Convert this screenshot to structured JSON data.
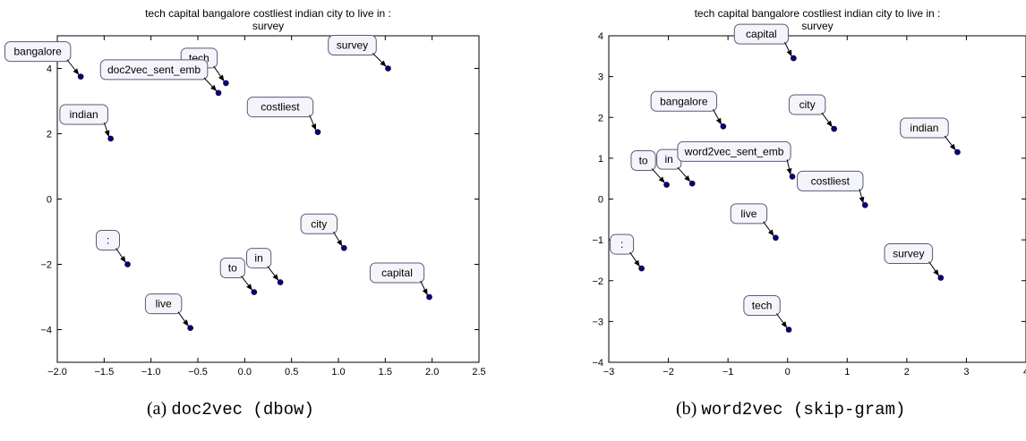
{
  "chart_data": [
    {
      "type": "scatter",
      "title_line1": "tech capital bangalore costliest indian city to live in :",
      "title_line2": "survey",
      "xlabel": "",
      "ylabel": "",
      "xlim": [
        -2.0,
        2.5
      ],
      "ylim": [
        -5,
        5
      ],
      "xticks": [
        -2.0,
        -1.5,
        -1.0,
        -0.5,
        0.0,
        0.5,
        1.0,
        1.5,
        2.0,
        2.5
      ],
      "xtick_labels": [
        "−2.0",
        "−1.5",
        "−1.0",
        "−0.5",
        "0.0",
        "0.5",
        "1.0",
        "1.5",
        "2.0",
        "2.5"
      ],
      "yticks": [
        4,
        2,
        0,
        -2,
        -4
      ],
      "ytick_labels": [
        "4",
        "2",
        "0",
        "−2",
        "−4"
      ],
      "grid": false,
      "points": [
        {
          "label": "bangalore",
          "x": -1.75,
          "y": 3.75
        },
        {
          "label": "tech",
          "x": -0.2,
          "y": 3.55
        },
        {
          "label": "doc2vec_sent_emb",
          "x": -0.28,
          "y": 3.25
        },
        {
          "label": "survey",
          "x": 1.53,
          "y": 4.0
        },
        {
          "label": "indian",
          "x": -1.43,
          "y": 1.85
        },
        {
          "label": "costliest",
          "x": 0.78,
          "y": 2.05
        },
        {
          "label": ":",
          "x": -1.25,
          "y": -2.0
        },
        {
          "label": "city",
          "x": 1.06,
          "y": -1.5
        },
        {
          "label": "to",
          "x": 0.1,
          "y": -2.85
        },
        {
          "label": "in",
          "x": 0.38,
          "y": -2.55
        },
        {
          "label": "capital",
          "x": 1.97,
          "y": -3.0
        },
        {
          "label": "live",
          "x": -0.58,
          "y": -3.95
        }
      ],
      "point_color": "#00008b"
    },
    {
      "type": "scatter",
      "title_line1": "tech capital bangalore costliest indian city to live in :",
      "title_line2": "survey",
      "xlabel": "",
      "ylabel": "",
      "xlim": [
        -3,
        4
      ],
      "ylim": [
        -4,
        4
      ],
      "xticks": [
        -3,
        -2,
        -1,
        0,
        1,
        2,
        3,
        4
      ],
      "xtick_labels": [
        "−3",
        "−2",
        "−1",
        "0",
        "1",
        "2",
        "3",
        "4"
      ],
      "yticks": [
        4,
        3,
        2,
        1,
        0,
        -1,
        -2,
        -3,
        -4
      ],
      "ytick_labels": [
        "4",
        "3",
        "2",
        "1",
        "0",
        "−1",
        "−2",
        "−3",
        "−4"
      ],
      "grid": false,
      "points": [
        {
          "label": "capital",
          "x": 0.1,
          "y": 3.45
        },
        {
          "label": "bangalore",
          "x": -1.08,
          "y": 1.78
        },
        {
          "label": "city",
          "x": 0.78,
          "y": 1.72
        },
        {
          "label": "indian",
          "x": 2.85,
          "y": 1.15
        },
        {
          "label": "to",
          "x": -2.03,
          "y": 0.35
        },
        {
          "label": "in",
          "x": -1.6,
          "y": 0.38
        },
        {
          "label": "word2vec_sent_emb",
          "x": 0.08,
          "y": 0.55
        },
        {
          "label": "costliest",
          "x": 1.3,
          "y": -0.15
        },
        {
          "label": "live",
          "x": -0.2,
          "y": -0.95
        },
        {
          "label": ":",
          "x": -2.45,
          "y": -1.7
        },
        {
          "label": "survey",
          "x": 2.57,
          "y": -1.93
        },
        {
          "label": "tech",
          "x": 0.02,
          "y": -3.2
        }
      ],
      "point_color": "#00008b"
    }
  ],
  "captions": {
    "a": {
      "prefix": "(a) ",
      "name": "doc2vec",
      "detail": " (dbow)"
    },
    "b": {
      "prefix": "(b) ",
      "name": "word2vec",
      "detail": " (skip-gram)"
    }
  }
}
